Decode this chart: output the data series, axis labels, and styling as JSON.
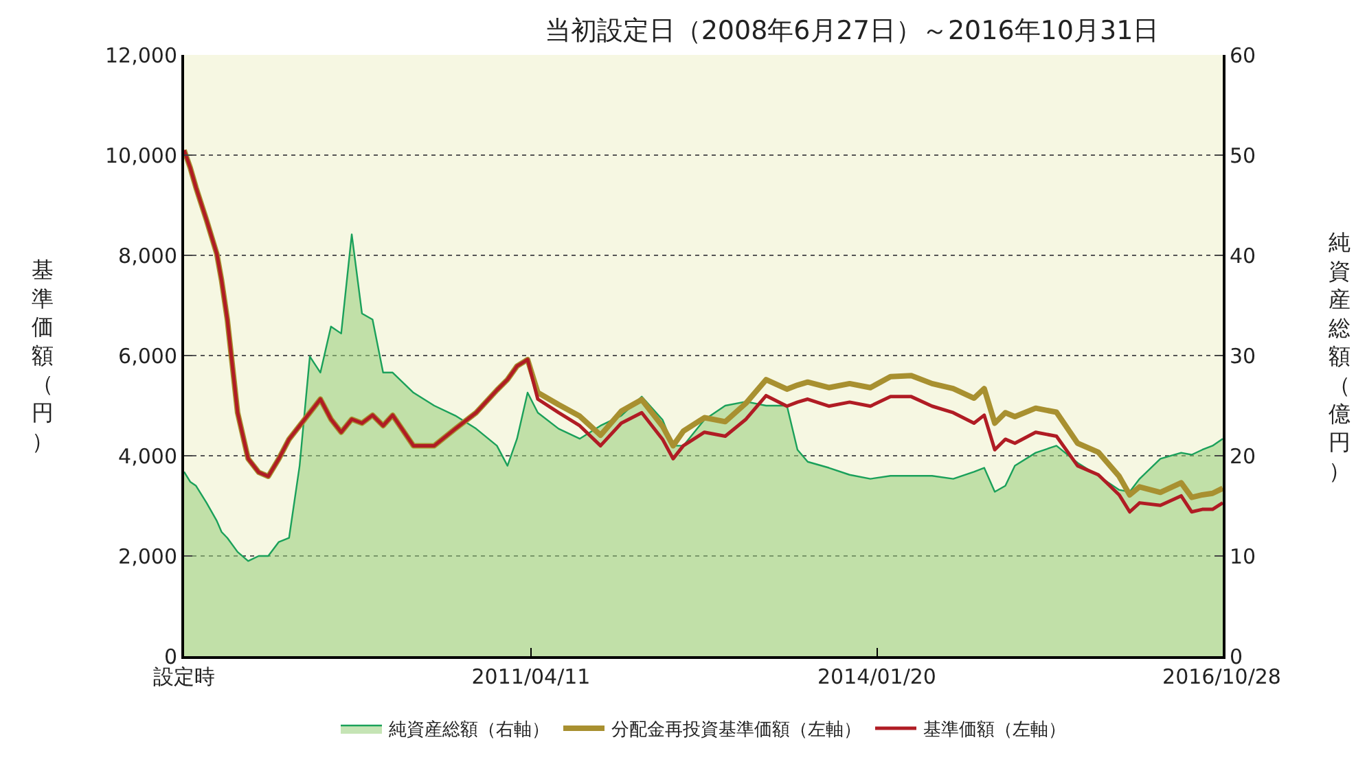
{
  "chart_data": {
    "type": "line",
    "title": "当初設定日（2008年6月27日）～2016年10月31日",
    "ylabel": "基準価額（円）",
    "y2label": "純資産総額（億円）",
    "x": [
      "2008-06-27",
      "2008-07-15",
      "2008-08-01",
      "2008-09-01",
      "2008-10-01",
      "2008-10-15",
      "2008-11-01",
      "2008-12-01",
      "2009-01-01",
      "2009-02-01",
      "2009-03-01",
      "2009-04-01",
      "2009-05-01",
      "2009-06-01",
      "2009-07-01",
      "2009-08-01",
      "2009-09-01",
      "2009-10-01",
      "2009-11-01",
      "2009-12-01",
      "2010-01-01",
      "2010-02-01",
      "2010-03-01",
      "2010-05-01",
      "2010-07-01",
      "2010-09-01",
      "2010-11-01",
      "2011-01-01",
      "2011-02-01",
      "2011-03-01",
      "2011-04-01",
      "2011-05-01",
      "2011-07-01",
      "2011-09-01",
      "2011-11-01",
      "2012-01-01",
      "2012-03-01",
      "2012-05-01",
      "2012-06-01",
      "2012-07-01",
      "2012-09-01",
      "2012-11-01",
      "2013-01-01",
      "2013-03-01",
      "2013-05-01",
      "2013-06-01",
      "2013-07-01",
      "2013-09-01",
      "2013-11-01",
      "2014-01-01",
      "2014-03-01",
      "2014-05-01",
      "2014-07-01",
      "2014-09-01",
      "2014-11-01",
      "2014-12-01",
      "2015-01-01",
      "2015-02-01",
      "2015-03-01",
      "2015-05-01",
      "2015-07-01",
      "2015-09-01",
      "2015-11-01",
      "2016-01-01",
      "2016-02-01",
      "2016-03-01",
      "2016-05-01",
      "2016-07-01",
      "2016-08-01",
      "2016-09-01",
      "2016-10-01",
      "2016-10-31"
    ],
    "series": [
      {
        "name": "純資産総額（右軸）",
        "type": "area",
        "axis": "y2",
        "color": "#1aa05a",
        "values": [
          18.4,
          17.4,
          17.0,
          15.3,
          13.5,
          12.4,
          11.8,
          10.4,
          9.5,
          10.0,
          10.0,
          11.4,
          11.8,
          19.0,
          29.9,
          28.3,
          32.9,
          32.2,
          42.1,
          34.2,
          33.6,
          28.3,
          28.3,
          26.3,
          25.0,
          24.0,
          22.7,
          21.0,
          19.0,
          21.7,
          26.3,
          24.3,
          22.7,
          21.7,
          23.0,
          24.0,
          25.9,
          23.6,
          21.0,
          21.0,
          23.6,
          25.0,
          25.4,
          25.0,
          25.0,
          20.6,
          19.4,
          18.8,
          18.1,
          17.7,
          18.0,
          18.0,
          18.0,
          17.7,
          18.4,
          18.8,
          16.4,
          17.0,
          19.0,
          20.3,
          21.0,
          19.3,
          18.0,
          16.6,
          16.4,
          17.7,
          19.7,
          20.3,
          20.1,
          20.6,
          21.0,
          21.7
        ]
      },
      {
        "name": "分配金再投資基準価額（左軸）",
        "color": "#a89030",
        "values": [
          10100,
          9750,
          9350,
          8700,
          8030,
          7500,
          6710,
          4860,
          3940,
          3670,
          3590,
          3940,
          4330,
          4600,
          4860,
          5130,
          4730,
          4470,
          4730,
          4650,
          4810,
          4600,
          4810,
          4200,
          4200,
          4540,
          4860,
          5310,
          5520,
          5790,
          5920,
          5260,
          5020,
          4790,
          4410,
          4890,
          5120,
          4590,
          4200,
          4490,
          4760,
          4680,
          5050,
          5520,
          5330,
          5410,
          5470,
          5360,
          5440,
          5360,
          5580,
          5600,
          5440,
          5340,
          5150,
          5340,
          4650,
          4860,
          4780,
          4950,
          4870,
          4250,
          4070,
          3590,
          3220,
          3380,
          3270,
          3460,
          3170,
          3220,
          3250,
          3350
        ]
      },
      {
        "name": "基準価額（左軸）",
        "color": "#b01c24",
        "values": [
          10100,
          9750,
          9350,
          8700,
          8030,
          7500,
          6710,
          4860,
          3940,
          3670,
          3590,
          3940,
          4330,
          4600,
          4860,
          5130,
          4730,
          4470,
          4730,
          4650,
          4810,
          4600,
          4810,
          4200,
          4200,
          4540,
          4860,
          5310,
          5520,
          5790,
          5920,
          5130,
          4860,
          4600,
          4200,
          4650,
          4860,
          4330,
          3940,
          4200,
          4470,
          4390,
          4730,
          5200,
          4990,
          5070,
          5130,
          4990,
          5070,
          4990,
          5180,
          5180,
          4990,
          4860,
          4650,
          4810,
          4120,
          4330,
          4250,
          4470,
          4390,
          3800,
          3620,
          3220,
          2880,
          3060,
          3010,
          3200,
          2880,
          2930,
          2930,
          3060
        ]
      }
    ],
    "xlim": [
      "2008-06-27",
      "2016-10-31"
    ],
    "xticks": [
      {
        "value": "2008-06-27",
        "label": "設定時"
      },
      {
        "value": "2011-04-11",
        "label": "2011/04/11"
      },
      {
        "value": "2014-01-20",
        "label": "2014/01/20"
      },
      {
        "value": "2016-10-28",
        "label": "2016/10/28"
      }
    ],
    "ylim": [
      0,
      12000
    ],
    "yticks": [
      0,
      {
        "value": 2000,
        "label": "2,000"
      },
      {
        "value": 4000,
        "label": "4,000"
      },
      {
        "value": 6000,
        "label": "6,000"
      },
      {
        "value": 8000,
        "label": "8,000"
      },
      {
        "value": 10000,
        "label": "10,000"
      },
      {
        "value": 12000,
        "label": "12,000"
      }
    ],
    "y2lim": [
      0,
      60
    ],
    "y2ticks": [
      0,
      10,
      20,
      30,
      40,
      50,
      60
    ],
    "grid": "y",
    "legend": "bottom"
  }
}
